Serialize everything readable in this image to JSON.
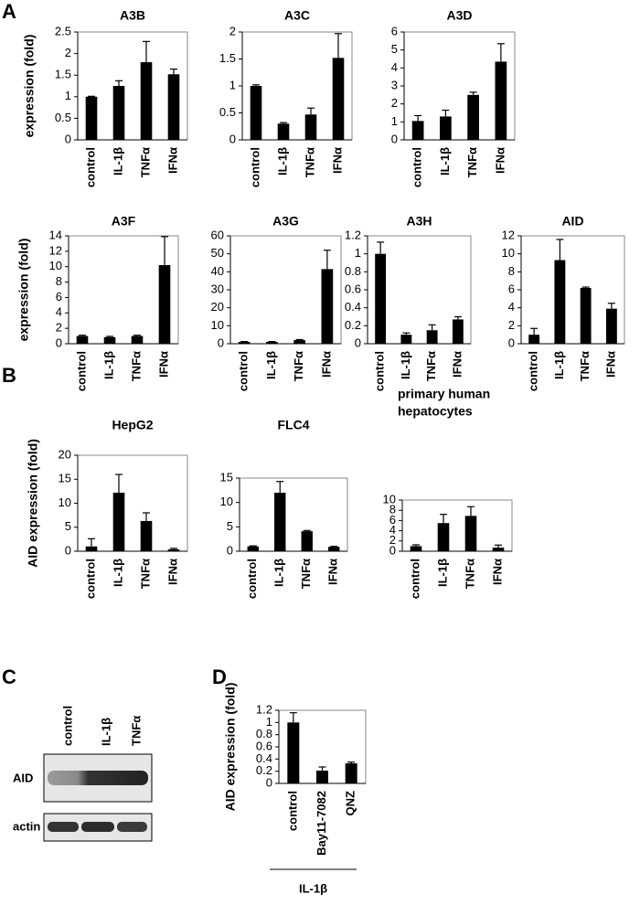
{
  "panel_labels": [
    "A",
    "B",
    "C",
    "D"
  ],
  "chart_data": [
    {
      "type": "bar",
      "title": "A3B",
      "ylabel": "expression (fold)",
      "categories": [
        "control",
        "IL-1β",
        "TNFα",
        "IFNα"
      ],
      "values": [
        1.0,
        1.25,
        1.8,
        1.52
      ],
      "errors": [
        0.01,
        0.12,
        0.48,
        0.12
      ],
      "ylim": [
        0,
        2.5
      ],
      "yticks": [
        0,
        0.5,
        1,
        1.5,
        2,
        2.5
      ],
      "color": "#000000"
    },
    {
      "type": "bar",
      "title": "A3C",
      "categories": [
        "control",
        "IL-1β",
        "TNFα",
        "IFNα"
      ],
      "values": [
        1.0,
        0.3,
        0.47,
        1.52
      ],
      "errors": [
        0.02,
        0.02,
        0.12,
        0.45
      ],
      "ylim": [
        0,
        2
      ],
      "yticks": [
        0,
        0.5,
        1,
        1.5,
        2
      ],
      "color": "#000000"
    },
    {
      "type": "bar",
      "title": "A3D",
      "categories": [
        "control",
        "IL-1β",
        "TNFα",
        "IFNα"
      ],
      "values": [
        1.05,
        1.3,
        2.5,
        4.35
      ],
      "errors": [
        0.3,
        0.35,
        0.15,
        1.0
      ],
      "ylim": [
        0,
        6
      ],
      "yticks": [
        0,
        1,
        2,
        3,
        4,
        5,
        6
      ],
      "color": "#000000"
    },
    {
      "type": "bar",
      "title": "A3F",
      "ylabel": "expression (fold)",
      "categories": [
        "control",
        "IL-1β",
        "TNFα",
        "IFNα"
      ],
      "values": [
        1.0,
        0.85,
        1.0,
        10.2
      ],
      "errors": [
        0.1,
        0.1,
        0.1,
        3.7
      ],
      "ylim": [
        0,
        14
      ],
      "yticks": [
        0,
        2,
        4,
        6,
        8,
        10,
        12,
        14
      ],
      "color": "#000000"
    },
    {
      "type": "bar",
      "title": "A3G",
      "categories": [
        "control",
        "IL-1β",
        "TNFα",
        "IFNα"
      ],
      "values": [
        1,
        1,
        2,
        41.5
      ],
      "errors": [
        0.2,
        0.2,
        0.3,
        10.5
      ],
      "ylim": [
        0,
        60
      ],
      "yticks": [
        0,
        10,
        20,
        30,
        40,
        50,
        60
      ],
      "color": "#000000"
    },
    {
      "type": "bar",
      "title": "A3H",
      "categories": [
        "control",
        "IL-1β",
        "TNFα",
        "IFNα"
      ],
      "values": [
        1.0,
        0.1,
        0.15,
        0.27
      ],
      "errors": [
        0.13,
        0.02,
        0.06,
        0.03
      ],
      "ylim": [
        0,
        1.2
      ],
      "yticks": [
        0,
        0.2,
        0.4,
        0.6,
        0.8,
        1,
        1.2
      ],
      "color": "#000000"
    },
    {
      "type": "bar",
      "title": "AID",
      "categories": [
        "control",
        "IL-1β",
        "TNFα",
        "IFNα"
      ],
      "values": [
        1,
        9.3,
        6.2,
        3.9
      ],
      "errors": [
        0.7,
        2.3,
        0.1,
        0.6
      ],
      "ylim": [
        0,
        12
      ],
      "yticks": [
        0,
        2,
        4,
        6,
        8,
        10,
        12
      ],
      "color": "#000000"
    },
    {
      "type": "bar",
      "title": "HepG2",
      "ylabel": "AID expression (fold)",
      "categories": [
        "control",
        "IL-1β",
        "TNFα",
        "IFNα"
      ],
      "values": [
        1,
        12.2,
        6.3,
        0.4
      ],
      "errors": [
        1.6,
        3.8,
        1.7,
        0.2
      ],
      "ylim": [
        0,
        20
      ],
      "yticks": [
        0,
        5,
        10,
        15,
        20
      ],
      "color": "#000000"
    },
    {
      "type": "bar",
      "title": "FLC4",
      "categories": [
        "control",
        "IL-1β",
        "TNFα",
        "IFNα"
      ],
      "values": [
        1,
        12,
        4.1,
        0.9
      ],
      "errors": [
        0.1,
        2.3,
        0.15,
        0.1
      ],
      "ylim": [
        0,
        15
      ],
      "yticks": [
        0,
        5,
        10,
        15
      ],
      "color": "#000000"
    },
    {
      "type": "bar",
      "title": [
        "primary human",
        "hepatocytes"
      ],
      "categories": [
        "control",
        "IL-1β",
        "TNFα",
        "IFNα"
      ],
      "values": [
        1,
        5.5,
        6.9,
        0.7
      ],
      "errors": [
        0.25,
        1.7,
        1.8,
        0.5
      ],
      "ylim": [
        0,
        10
      ],
      "yticks": [
        0,
        2,
        4,
        6,
        8,
        10
      ],
      "color": "#000000"
    },
    {
      "type": "bar",
      "ylabel": "AID expression (fold)",
      "categories": [
        "control",
        "Bay11-7082",
        "QNZ"
      ],
      "values": [
        1.0,
        0.21,
        0.33
      ],
      "errors": [
        0.16,
        0.06,
        0.02
      ],
      "ylim": [
        0,
        1.2
      ],
      "yticks": [
        0,
        0.2,
        0.4,
        0.6,
        0.8,
        1,
        1.2
      ],
      "group_label": "IL-1β",
      "color": "#000000"
    }
  ],
  "blot": {
    "lanes": [
      "control",
      "IL-1β",
      "TNFα"
    ],
    "rows": [
      "AID",
      "actin"
    ]
  }
}
